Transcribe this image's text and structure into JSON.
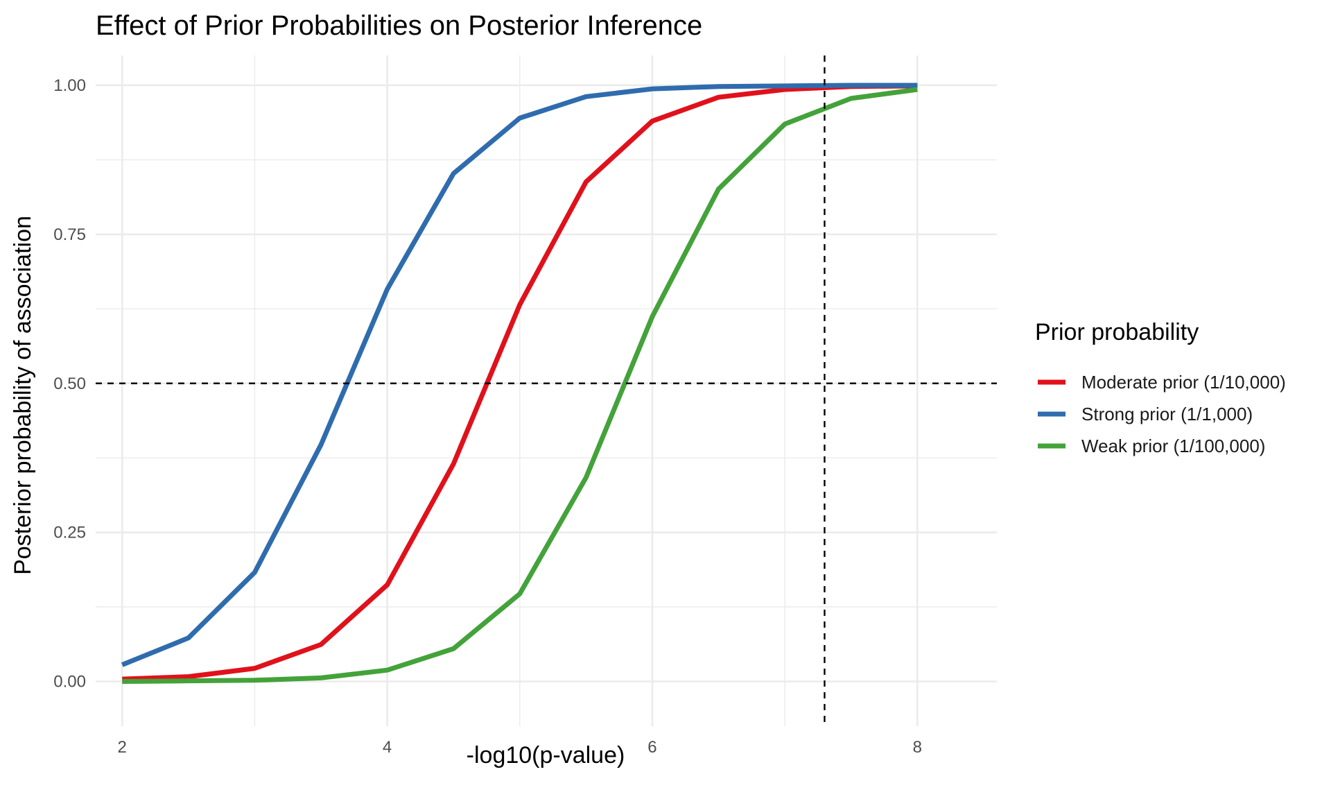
{
  "chart_data": {
    "type": "line",
    "title": "Effect of Prior Probabilities on Posterior Inference",
    "xlabel": "-log10(p-value)",
    "ylabel": "Posterior probability of association",
    "xlim": [
      1.8,
      8.6
    ],
    "ylim": [
      -0.075,
      1.05
    ],
    "x_ticks": [
      2,
      4,
      6,
      8
    ],
    "x_tick_labels": [
      "2",
      "4",
      "6",
      "8"
    ],
    "y_ticks": [
      0,
      0.25,
      0.5,
      0.75,
      1.0
    ],
    "y_tick_labels": [
      "0.00",
      "0.25",
      "0.50",
      "0.75",
      "1.00"
    ],
    "grid": true,
    "reference_lines": [
      {
        "orientation": "horizontal",
        "value": 0.5,
        "style": "dashed"
      },
      {
        "orientation": "vertical",
        "value": 7.3,
        "style": "dashed"
      }
    ],
    "legend": {
      "title": "Prior probability",
      "placement": "right"
    },
    "x": [
      2,
      2.5,
      3,
      3.5,
      4,
      4.5,
      5,
      5.5,
      6,
      6.5,
      7,
      7.5,
      8
    ],
    "series": [
      {
        "name": "Moderate prior (1/10,000)",
        "color": "#e0111b",
        "values": [
          0.004,
          0.008,
          0.022,
          0.062,
          0.162,
          0.365,
          0.632,
          0.838,
          0.94,
          0.98,
          0.993,
          0.998,
          0.999
        ]
      },
      {
        "name": "Strong prior (1/1,000)",
        "color": "#2f6cae",
        "values": [
          0.028,
          0.073,
          0.183,
          0.397,
          0.658,
          0.852,
          0.945,
          0.981,
          0.994,
          0.998,
          0.999,
          1.0,
          1.0
        ]
      },
      {
        "name": "Weak prior (1/100,000)",
        "color": "#43a23a",
        "values": [
          0.0,
          0.001,
          0.002,
          0.006,
          0.019,
          0.055,
          0.147,
          0.342,
          0.612,
          0.826,
          0.935,
          0.978,
          0.993
        ]
      }
    ]
  }
}
